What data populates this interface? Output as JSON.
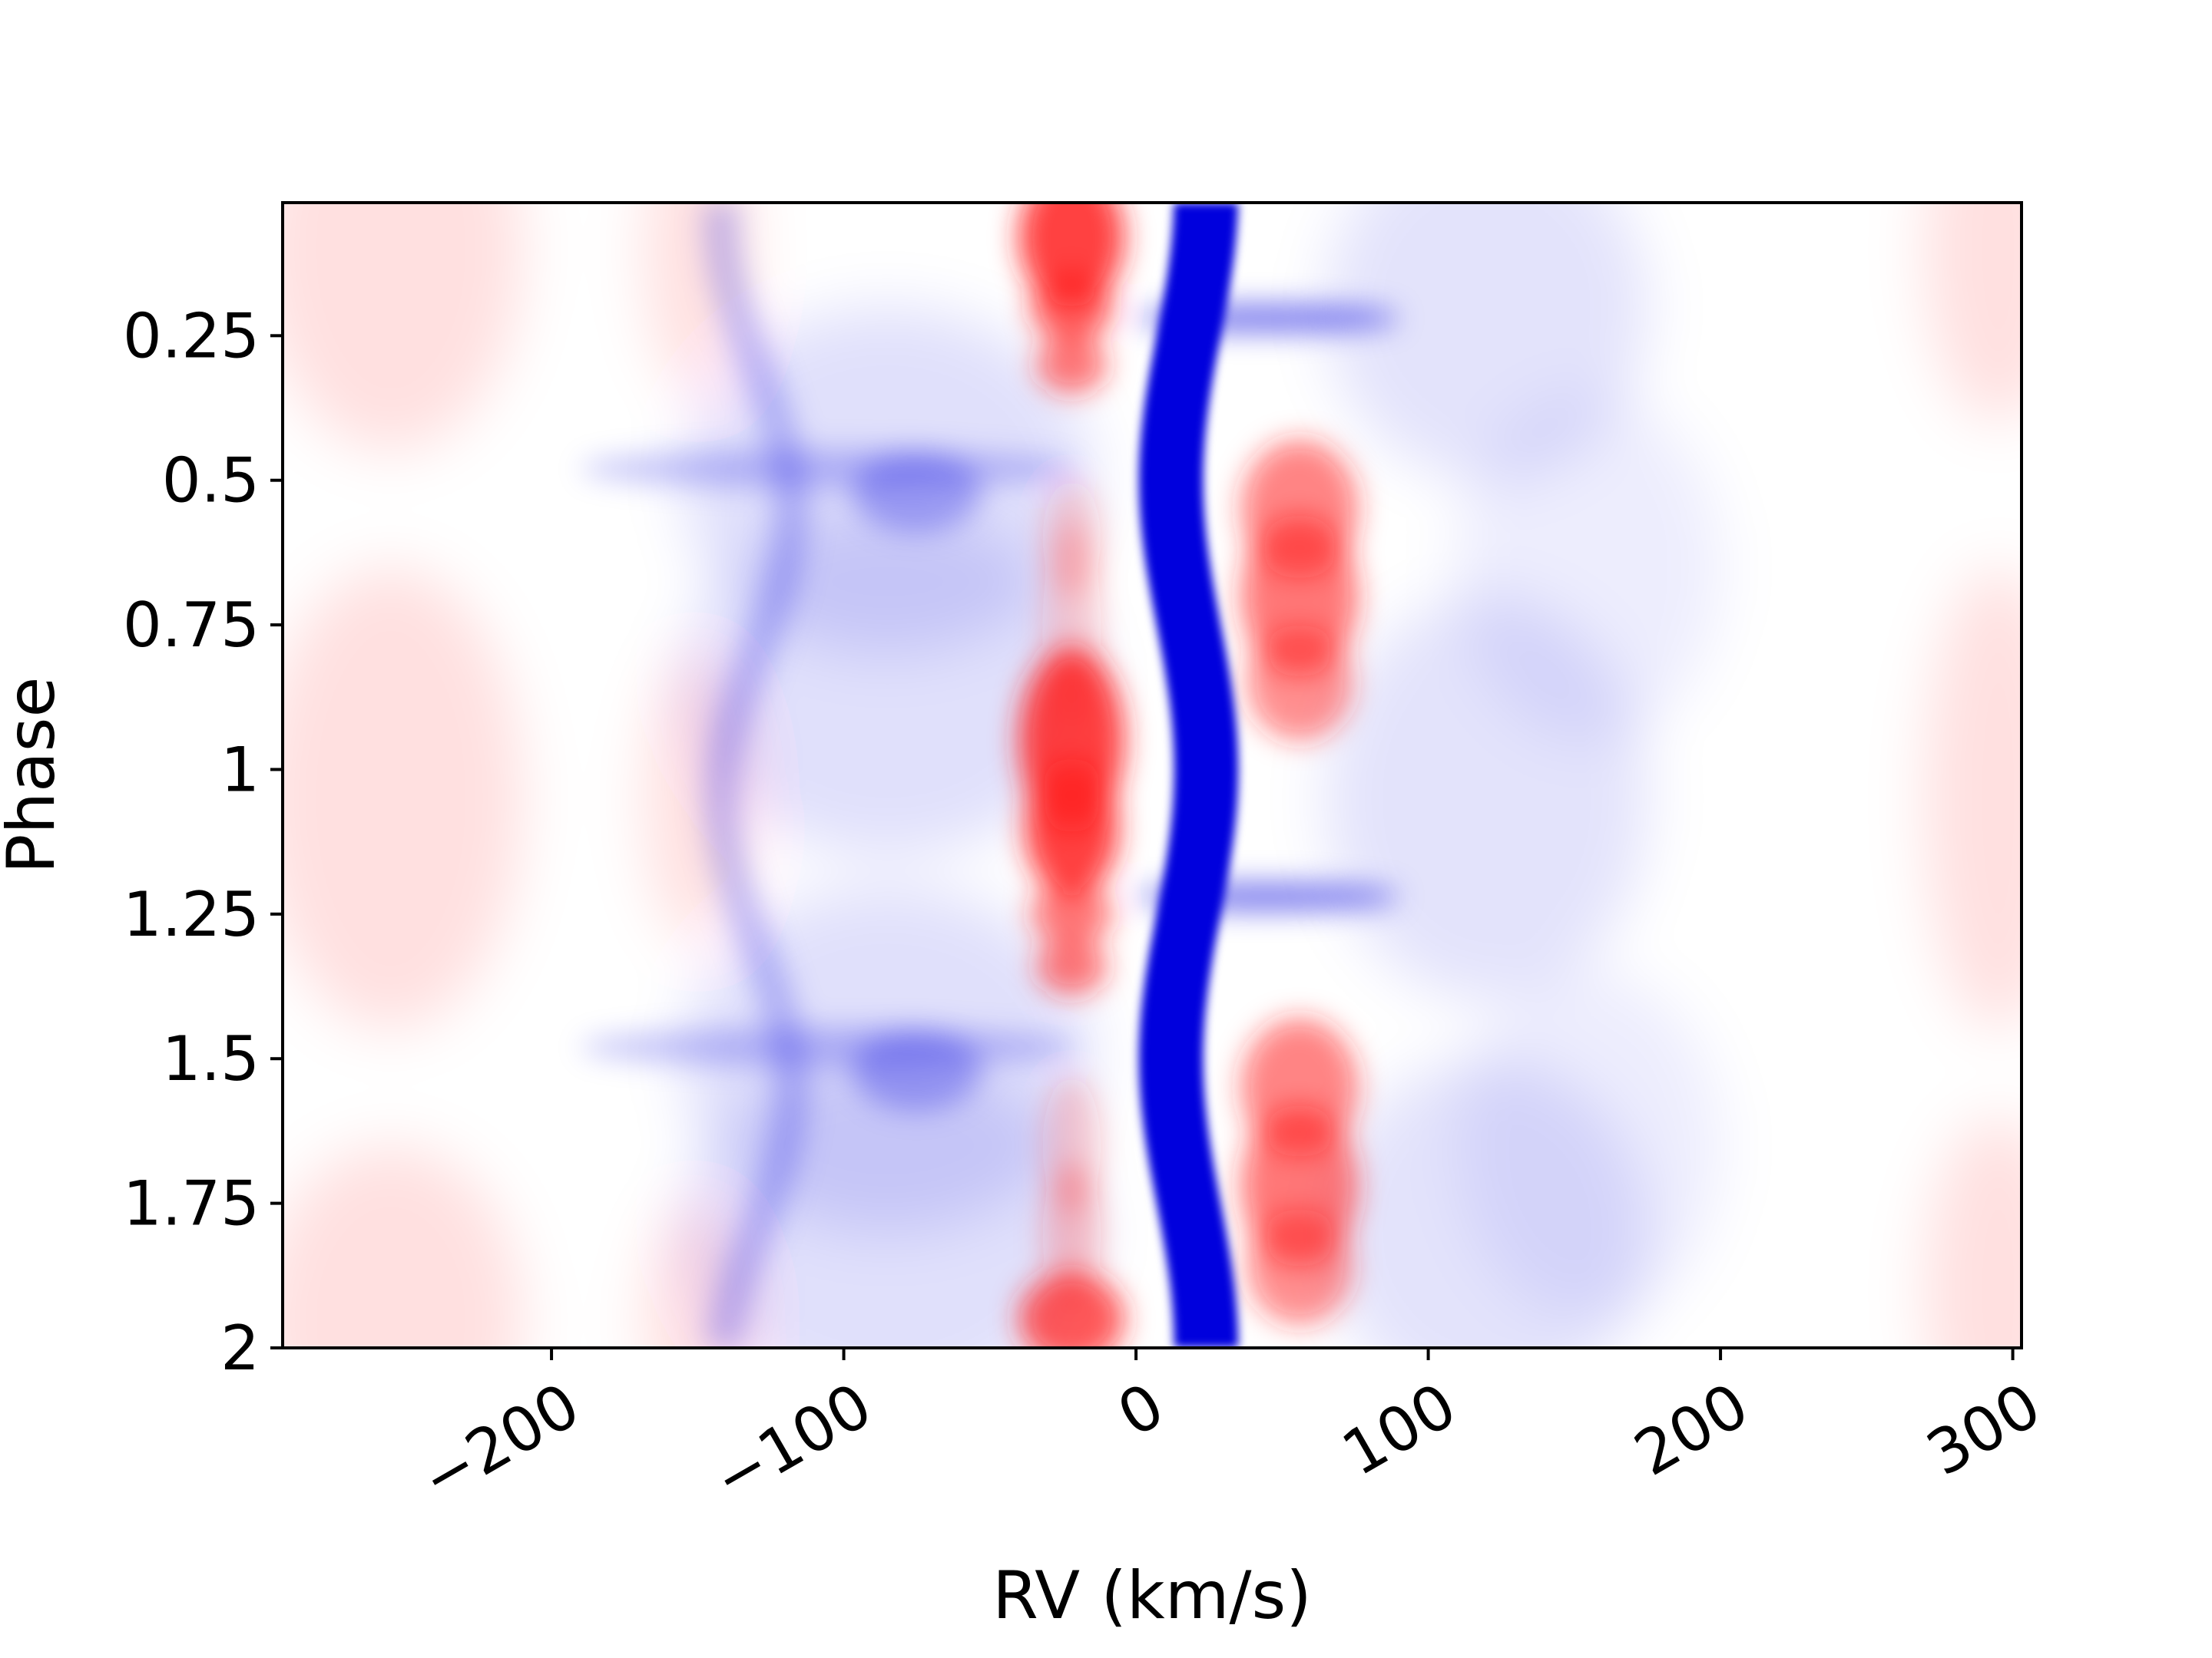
{
  "chart_data": {
    "type": "heatmap",
    "title": "",
    "xlabel": "RV (km/s)",
    "ylabel": "Phase",
    "xlim": [
      -292,
      303
    ],
    "ylim": [
      0.02,
      2.0
    ],
    "y_inverted": true,
    "x_ticks": [
      -200,
      -100,
      0,
      100,
      200,
      300
    ],
    "x_tick_labels": [
      "−200",
      "−100",
      "0",
      "100",
      "200",
      "300"
    ],
    "x_tick_rotation_deg": 30,
    "y_ticks": [
      0.25,
      0.5,
      0.75,
      1,
      1.25,
      1.5,
      1.75,
      2
    ],
    "y_tick_labels": [
      "0.25",
      "0.5",
      "0.75",
      "1",
      "1.25",
      "1.5",
      "1.75",
      "2"
    ],
    "colormap": "diverging blue-white-red",
    "colors": {
      "negative": "#0000dd",
      "zero": "#ffffff",
      "positive": "#ff2020"
    },
    "grid": false,
    "legend": "none",
    "features": [
      {
        "name": "central absorption track",
        "sign": "negative",
        "rv_center": 18,
        "rv_width": 22,
        "rv_wave_amp": 6,
        "period": 1,
        "phase_range": [
          0.02,
          2.0
        ]
      },
      {
        "name": "emission left of track",
        "sign": "positive",
        "rv_center": -22,
        "phases_strong": [
          0.1,
          1.05,
          1.95
        ]
      },
      {
        "name": "emission right of track",
        "sign": "positive",
        "rv_center": 55,
        "phases_strong": [
          0.7,
          1.7
        ]
      },
      {
        "name": "blue streak",
        "sign": "negative",
        "phases": [
          0.22,
          0.48,
          1.22,
          1.48
        ]
      }
    ]
  }
}
